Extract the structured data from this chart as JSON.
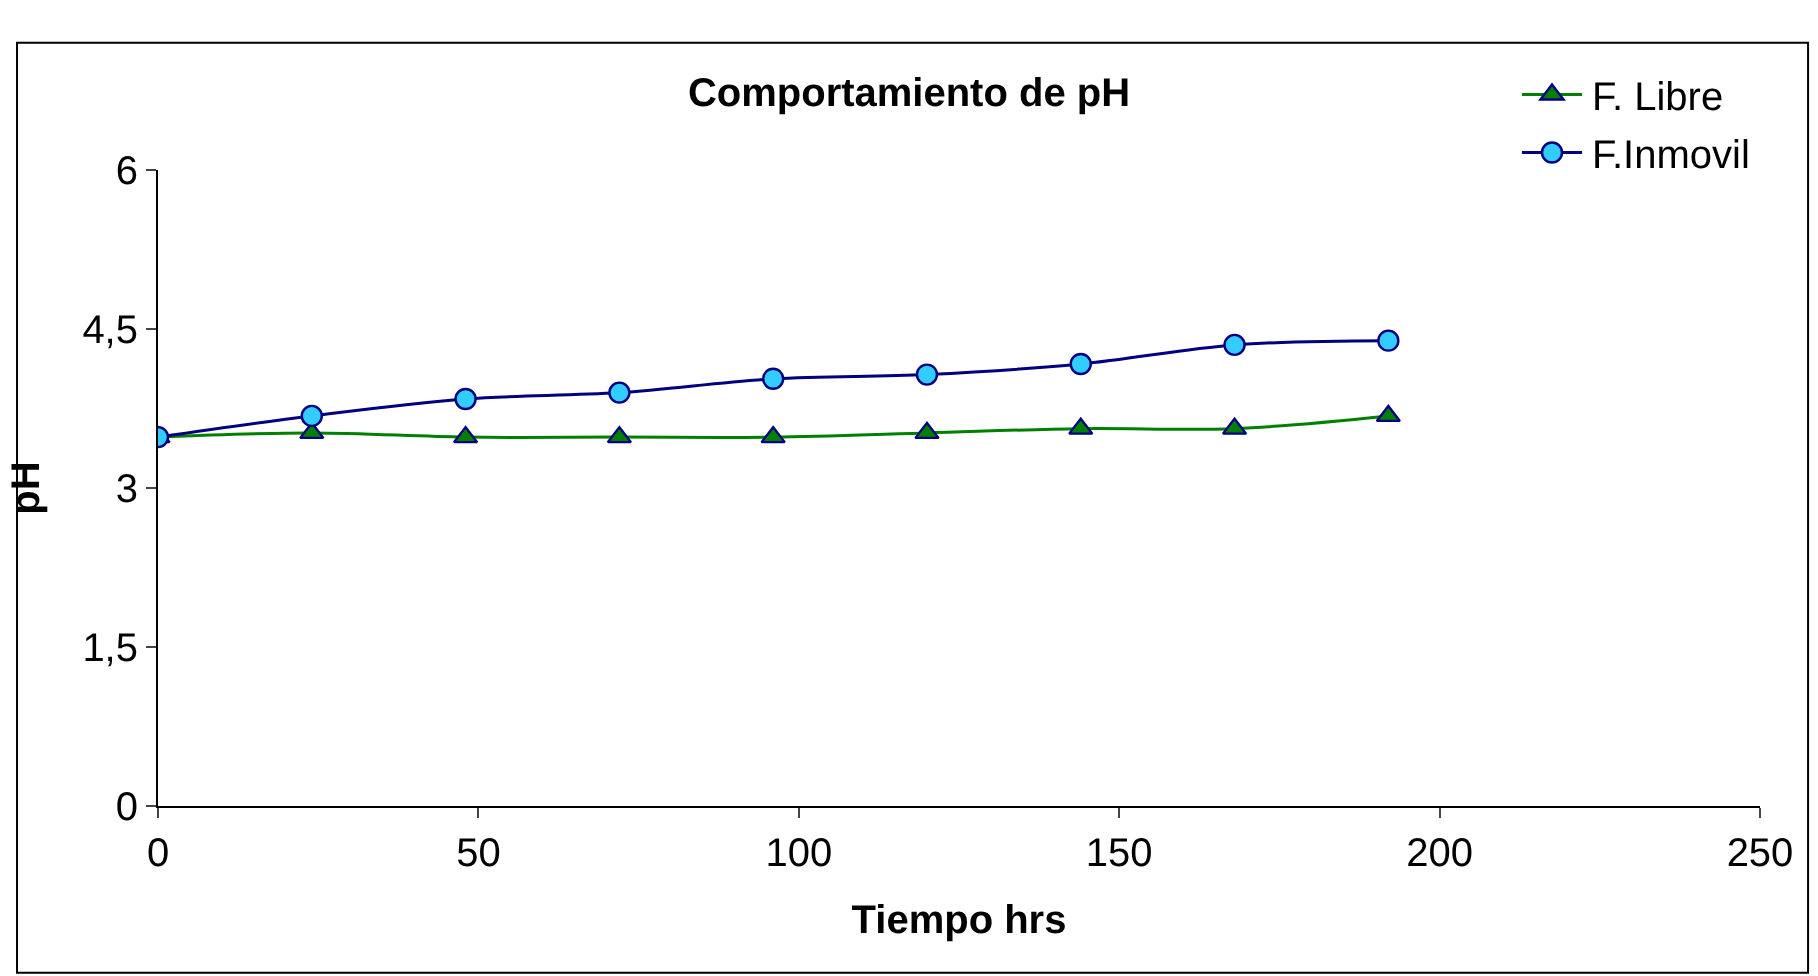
{
  "chart_data": {
    "type": "line",
    "title": "Comportamiento de pH",
    "xlabel": "Tiempo hrs",
    "ylabel": "pH",
    "x": [
      0,
      24,
      48,
      72,
      96,
      120,
      144,
      168,
      192
    ],
    "series": [
      {
        "name": "F. Libre",
        "color": "#008000",
        "marker": "triangle",
        "values": [
          3.48,
          3.52,
          3.48,
          3.48,
          3.48,
          3.52,
          3.56,
          3.56,
          3.68
        ]
      },
      {
        "name": "F.Inmovil",
        "color": "#000080",
        "marker": "circle",
        "values": [
          3.48,
          3.68,
          3.84,
          3.9,
          4.03,
          4.07,
          4.17,
          4.35,
          4.39
        ]
      }
    ],
    "xlim": [
      0,
      250
    ],
    "xticks": [
      0,
      50,
      100,
      150,
      200,
      250
    ],
    "ylim": [
      0,
      6
    ],
    "yticks": [
      0,
      {
        "value": 1.5,
        "label": "1,5"
      },
      3,
      {
        "value": 4.5,
        "label": "4,5"
      },
      6
    ],
    "legend": "top right",
    "line_style": "solid"
  }
}
